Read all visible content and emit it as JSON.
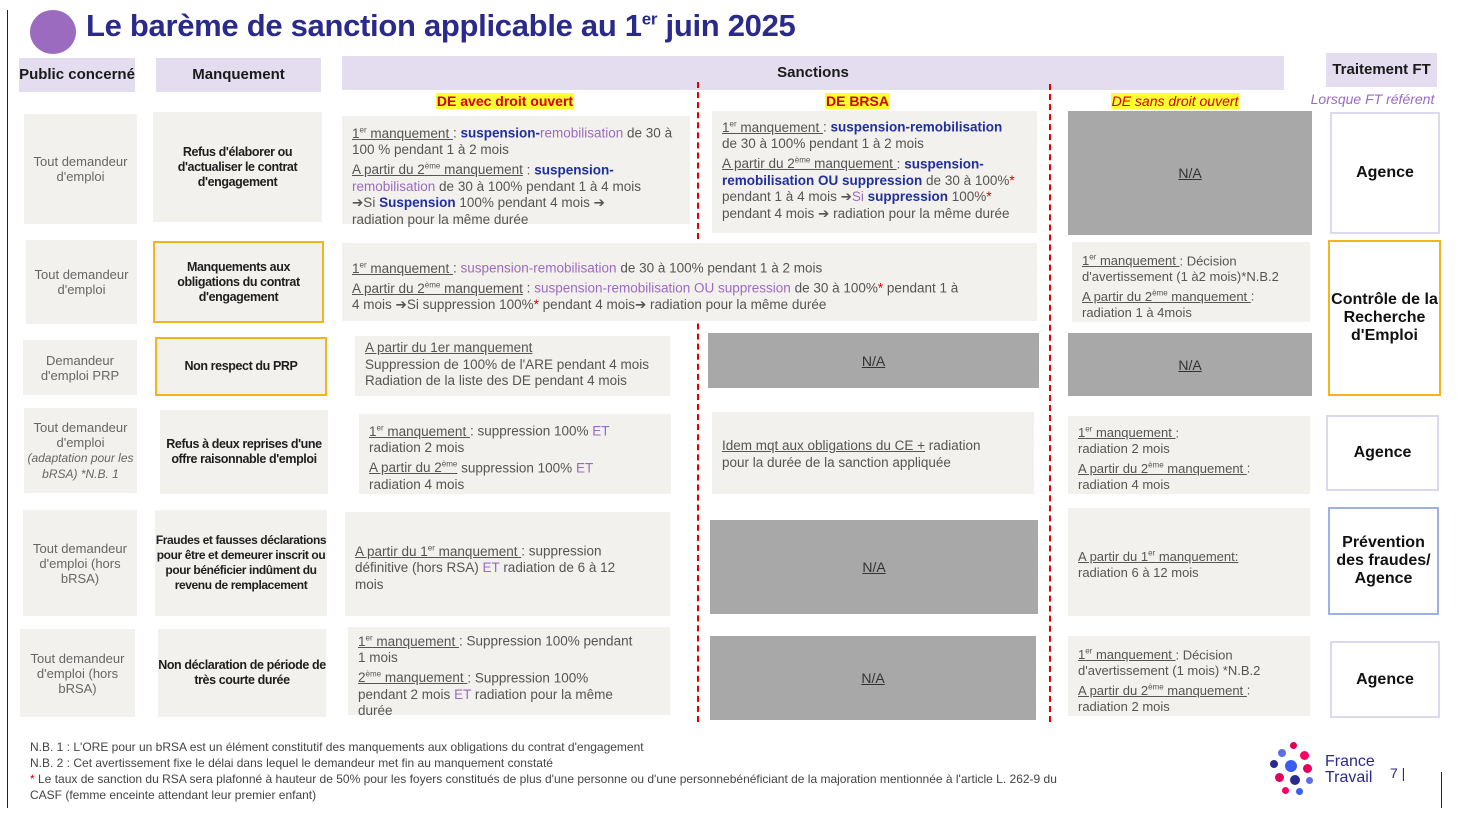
{
  "title": {
    "main": "Le barème de sanction applicable au 1",
    "sup": "er",
    "rest": " juin 2025"
  },
  "headers": {
    "public": "Public concerné",
    "manquement": "Manquement",
    "sanctions": "Sanctions",
    "traitement": "Traitement FT",
    "de_droit_ouvert": "DE avec droit ouvert",
    "de_brsa": "DE BRSA",
    "de_sans_droit": "DE sans droit ouvert",
    "lorsque_ft": "Lorsque FT référent"
  },
  "rows": [
    {
      "public": "Tout demandeur d'emploi",
      "manquement": "Refus d'élaborer ou d'actualiser le contrat d'engagement",
      "traitement": "Agence",
      "brsa_na": null,
      "sans_droit_na": "N/A"
    },
    {
      "public": "Tout demandeur d'emploi",
      "manquement": "Manquements aux obligations du contrat d'engagement",
      "traitement": "Contrôle de la Recherche d'Emploi"
    },
    {
      "public": "Demandeur d'emploi PRP",
      "manquement": "Non respect du PRP",
      "brsa_na": "N/A",
      "sans_droit_na": "N/A"
    },
    {
      "public_main": "Tout demandeur d'emploi",
      "public_italic": "(adaptation pour les bRSA) *N.B. 1",
      "manquement": "Refus à deux reprises d'une offre raisonnable d'emploi",
      "traitement": "Agence"
    },
    {
      "public": "Tout demandeur d'emploi (hors bRSA)",
      "manquement": "Fraudes et fausses déclarations pour être et demeurer inscrit ou pour bénéficier indûment du revenu de remplacement",
      "traitement": "Prévention des fraudes/ Agence",
      "brsa_na": "N/A"
    },
    {
      "public": "Tout demandeur d'emploi (hors bRSA)",
      "manquement": "Non déclaration de période de très courte durée",
      "traitement": "Agence",
      "brsa_na": "N/A"
    }
  ],
  "texts": {
    "r1_dao": {
      "l1a": "1",
      "l1sup": "er",
      "l1b": " manquement ",
      "l1c": ": ",
      "l1d": "suspension-",
      "l1e": "remobilisation",
      "l1f": " de 30 à 100 % pendant 1 à 2 mois",
      "l2a": "A partir du 2",
      "l2sup": "ème",
      "l2b": " manquement",
      "l2c": " : ",
      "l2d": "suspension-",
      "l2e": "remobilisation",
      "l2f": " de 30 à 100% pendant 1 à 4 mois",
      "l3a": "➔Si ",
      "l3b": "Suspension",
      "l3c": " 100% pendant 4 mois ➔",
      "l4": "radiation pour la même durée"
    },
    "r1_brsa": {
      "l1a": "1",
      "l1sup": "er",
      "l1b": " manquement ",
      "l1c": ": ",
      "l1d": "suspension-remobilisation",
      "l2": "de 30 à 100% pendant 1 à 2 mois",
      "l3a": "A partir du 2",
      "l3sup": "ème",
      "l3b": " manquement ",
      "l3c": ": ",
      "l3d": "suspension-remobilisation OU suppression",
      "l3e": " de 30 à 100%",
      "l3star": "*",
      "l4a": "pendant 1 à 4 mois  ➔",
      "l4b": "Si ",
      "l4c": "suppression",
      "l4d": " 100%",
      "l4star": "*",
      "l5": "pendant 4 mois ➔ radiation pour la même durée"
    },
    "r2_shared": {
      "l1a": "1",
      "l1sup": "er",
      "l1b": " manquement ",
      "l1c": ": ",
      "l1d": "suspension-remobilisation",
      "l1e": " de 30 à 100% pendant 1 à 2 mois",
      "l2a": "A partir du 2",
      "l2sup": "ème",
      "l2b": " manquement",
      "l2c": " : ",
      "l2d": "suspension-remobilisation OU suppression",
      "l2e": "  de 30 à 100%",
      "l2star": "*",
      "l2f": " pendant 1 à",
      "l3a": "4 mois  ➔Si suppression 100%",
      "l3star": "*",
      "l3b": " pendant 4 mois➔ radiation pour la même durée"
    },
    "r2_sans": {
      "l1a": "1",
      "l1sup": "er",
      "l1b": " manquement ",
      "l1c": ": Décision d'avertissement (1 à2 mois)*N.B.2",
      "l2a": "A partir du 2",
      "l2sup": "ème",
      "l2b": " manquement ",
      "l2c": ":",
      "l3": "radiation 1 à 4mois"
    },
    "r3_dao": {
      "l1": "A partir du 1er manquement",
      "l2": "Suppression de 100% de l'ARE pendant 4 mois",
      "l3": "Radiation de la liste des DE pendant 4 mois"
    },
    "r4_dao": {
      "l1a": "1",
      "l1sup": "er",
      "l1b": " manquement ",
      "l1c": ": suppression 100% ",
      "l1d": "ET",
      "l2": "radiation 2 mois",
      "l3a": "A partir du 2",
      "l3sup": "ème",
      "l3b": " suppression 100% ",
      "l3c": "ET",
      "l4": "radiation 4 mois"
    },
    "r4_brsa": {
      "l1a": "Idem mqt aux obligations du CE +",
      "l1b": " radiation",
      "l2": "pour la durée de la sanction appliquée"
    },
    "r4_sans": {
      "l1a": "1",
      "l1sup": "er",
      "l1b": " manquement ",
      "l1c": ":",
      "l2": "radiation 2 mois",
      "l3a": "A partir du 2",
      "l3sup": "ème",
      "l3b": " manquement ",
      "l3c": ":",
      "l4": "radiation 4 mois"
    },
    "r5_dao": {
      "l1a": "A partir du 1",
      "l1sup": "er",
      "l1b": " manquement ",
      "l1c": ": suppression",
      "l2a": "définitive (hors RSA) ",
      "l2b": "ET",
      "l2c": " radiation de 6 à 12",
      "l3": "mois"
    },
    "r5_sans": {
      "l1a": "A partir du 1",
      "l1sup": "er",
      "l1b": " manquement:",
      "l2": "radiation 6 à 12 mois"
    },
    "r6_dao": {
      "l1a": "1",
      "l1sup": "er",
      "l1b": " manquement ",
      "l1c": ": Suppression 100% pendant",
      "l2": "1 mois",
      "l3a": "2",
      "l3sup": "ème",
      "l3b": " manquement ",
      "l3c": ": Suppression 100%",
      "l4a": "pendant 2 mois ",
      "l4b": "ET",
      "l4c": " radiation pour la même",
      "l5": "durée"
    },
    "r6_sans": {
      "l1a": "1",
      "l1sup": "er",
      "l1b": " manquement ",
      "l1c": ": Décision",
      "l2": "d'avertissement (1 mois) *N.B.2",
      "l3a": "A partir du 2",
      "l3sup": "ème",
      "l3b": " manquement ",
      "l3c": ":",
      "l4": "radiation 2 mois"
    }
  },
  "footnotes": {
    "nb1": "N.B. 1 : L'ORE pour un bRSA est un élément constitutif des manquements aux obligations du contrat d'engagement",
    "nb2": "N.B. 2 : Cet avertissement fixe le délai dans lequel le demandeur met fin au manquement constaté",
    "star": "*",
    "star_text": " Le taux de sanction du RSA sera plafonné à hauteur de 50% pour les foyers constitués de plus d'une personne ou d'une personnebénéficiant de la majoration mentionnée à l'article L. 262-9 du",
    "star_text2": "CASF (femme enceinte attendant leur premier enfant)"
  },
  "logo": {
    "line1": "France",
    "line2": "Travail"
  },
  "page_number": "7",
  "colors": {
    "title": "#2a2a8c",
    "header_bg": "#e3ddef",
    "cell_bg": "#f3f1ed",
    "na_bg": "#a8a8a8",
    "orange_border": "#f5b31e",
    "red": "#d40000",
    "lavender": "#9b6bc0"
  }
}
